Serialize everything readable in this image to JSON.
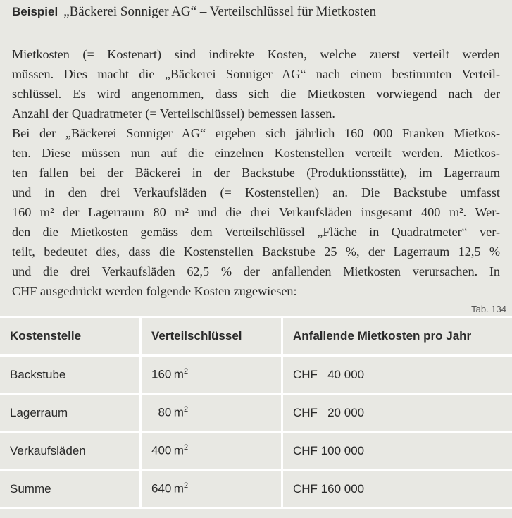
{
  "heading": {
    "label": "Beispiel",
    "title": "„Bäckerei Sonniger AG“ – Verteilschlüssel für Mietkosten"
  },
  "paragraph_lines": [
    "Mietkosten (= Kostenart) sind indirekte Kosten, welche zuerst verteilt werden",
    "müssen. Dies macht die „Bäckerei Sonniger AG“ nach einem bestimmten Verteil-",
    "schlüssel. Es wird angenommen, dass sich die Mietkosten vorwiegend nach der",
    "Anzahl der Quadratmeter (= Verteilschlüssel) bemessen lassen.",
    "Bei der „Bäckerei Sonniger AG“ ergeben sich jährlich 160 000 Franken Mietkos-",
    "ten. Diese müssen nun auf die einzelnen Kostenstellen verteilt werden. Mietkos-",
    "ten fallen bei der Bäckerei in der Backstube (Produktionsstätte), im Lagerraum",
    "und in den drei Verkaufsläden (= Kostenstellen) an. Die Backstube umfasst",
    "160 m² der Lagerraum 80 m² und die drei Verkaufsläden insgesamt 400 m². Wer-",
    "den die Mietkosten gemäss dem Verteilschlüssel „Fläche in Quadratmeter“ ver-",
    "teilt, bedeutet dies, dass die Kostenstellen Backstube 25 %, der Lagerraum 12,5 %",
    "und die drei Verkaufsläden 62,5 % der anfallenden Mietkosten verursachen. In",
    "CHF ausgedrückt werden folgende Kosten zugewiesen:"
  ],
  "table": {
    "ref": "Tab. 134",
    "headers": [
      "Kostenstelle",
      "Verteilschlüssel",
      "Anfallende Mietkosten pro Jahr"
    ],
    "unit": "m",
    "unit_exp": "2",
    "rows": [
      {
        "name": "Backstube",
        "area": "160",
        "cost": "CHF   40 000"
      },
      {
        "name": "Lagerraum",
        "area": "  80",
        "cost": "CHF   20 000"
      },
      {
        "name": "Verkaufsläden",
        "area": "400",
        "cost": "CHF 100 000"
      },
      {
        "name": "Summe",
        "area": "640",
        "cost": "CHF 160 000"
      }
    ]
  }
}
